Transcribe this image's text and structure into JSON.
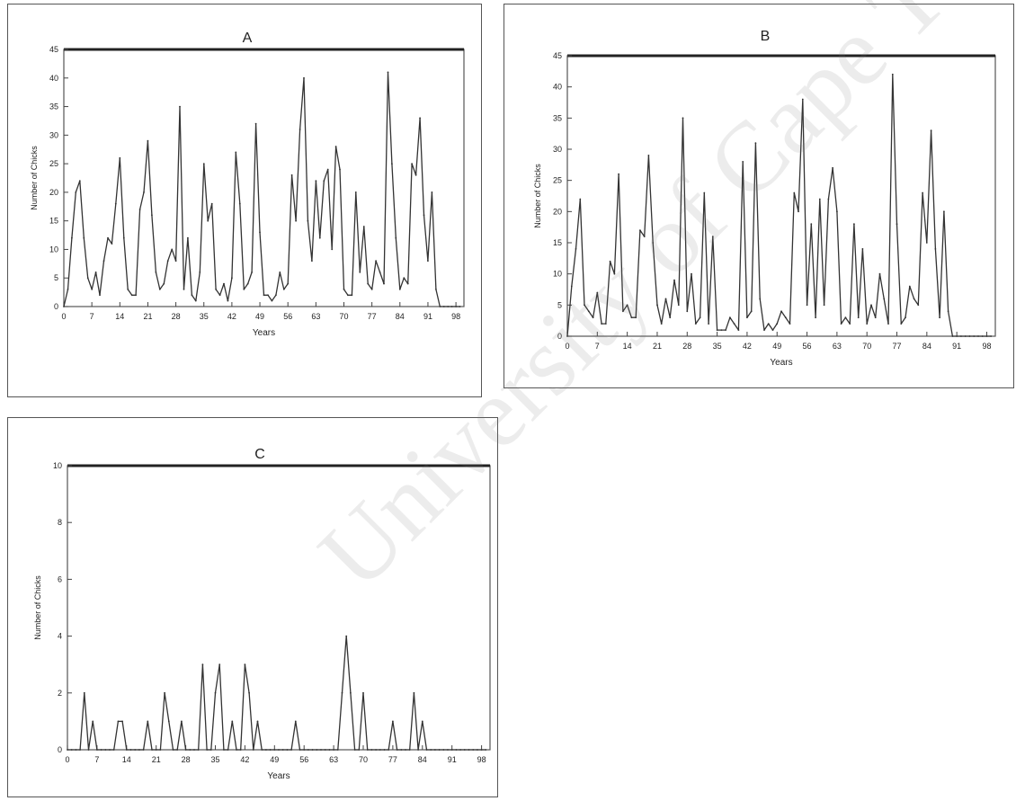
{
  "colors": {
    "line": "#333333",
    "frame": "#555555",
    "text": "#222222"
  },
  "watermark": {
    "text": "University of Cape Town"
  },
  "chart_data": [
    {
      "panel": "A",
      "type": "line",
      "title": "A",
      "xlabel": "Years",
      "ylabel": "Number of Chicks",
      "xlim": [
        0,
        100
      ],
      "ylim": [
        0,
        45
      ],
      "xticks": [
        0,
        7,
        14,
        21,
        28,
        35,
        42,
        49,
        56,
        63,
        70,
        77,
        84,
        91,
        98
      ],
      "xtick_labels": [
        "0",
        "7",
        "14",
        "21",
        "28",
        "35",
        "42",
        "49",
        "56",
        "63",
        "70",
        "77",
        "84",
        "91",
        "98"
      ],
      "yticks": [
        0,
        5,
        10,
        15,
        20,
        25,
        30,
        35,
        40,
        45
      ],
      "ytick_labels": [
        "0",
        "5",
        "10",
        "15",
        "20",
        "25",
        "30",
        "35",
        "40",
        "45"
      ],
      "x": [
        0,
        1,
        2,
        3,
        4,
        5,
        6,
        7,
        8,
        9,
        10,
        11,
        12,
        13,
        14,
        15,
        16,
        17,
        18,
        19,
        20,
        21,
        22,
        23,
        24,
        25,
        26,
        27,
        28,
        29,
        30,
        31,
        32,
        33,
        34,
        35,
        36,
        37,
        38,
        39,
        40,
        41,
        42,
        43,
        44,
        45,
        46,
        47,
        48,
        49,
        50,
        51,
        52,
        53,
        54,
        55,
        56,
        57,
        58,
        59,
        60,
        61,
        62,
        63,
        64,
        65,
        66,
        67,
        68,
        69,
        70,
        71,
        72,
        73,
        74,
        75,
        76,
        77,
        78,
        79,
        80,
        81,
        82,
        83,
        84,
        85,
        86,
        87,
        88,
        89,
        90,
        91,
        92,
        93,
        94,
        95,
        96,
        97,
        98,
        99
      ],
      "y": [
        0,
        3,
        12,
        20,
        22,
        12,
        5,
        3,
        6,
        2,
        8,
        12,
        11,
        18,
        26,
        12,
        3,
        2,
        2,
        17,
        20,
        29,
        16,
        6,
        3,
        4,
        8,
        10,
        8,
        35,
        3,
        12,
        2,
        1,
        6,
        25,
        15,
        18,
        3,
        2,
        4,
        1,
        5,
        27,
        18,
        3,
        4,
        6,
        32,
        13,
        2,
        2,
        1,
        2,
        6,
        3,
        4,
        23,
        15,
        31,
        40,
        15,
        8,
        22,
        12,
        22,
        24,
        10,
        28,
        24,
        3,
        2,
        2,
        20,
        6,
        14,
        4,
        3,
        8,
        6,
        4,
        41,
        25,
        12,
        3,
        5,
        4,
        25,
        23,
        33,
        16,
        8,
        20,
        3,
        0,
        0,
        0,
        0,
        0,
        0
      ]
    },
    {
      "panel": "B",
      "type": "line",
      "title": "B",
      "xlabel": "Years",
      "ylabel": "Number of Chicks",
      "xlim": [
        0,
        100
      ],
      "ylim": [
        0,
        45
      ],
      "xticks": [
        0,
        7,
        14,
        21,
        28,
        35,
        42,
        49,
        56,
        63,
        70,
        77,
        84,
        91,
        98
      ],
      "xtick_labels": [
        "0",
        "7",
        "14",
        "21",
        "28",
        "35",
        "42",
        "49",
        "56",
        "63",
        "70",
        "77",
        "84",
        "91",
        "98"
      ],
      "yticks": [
        0,
        5,
        10,
        15,
        20,
        25,
        30,
        35,
        40,
        45
      ],
      "ytick_labels": [
        "0",
        "5",
        "10",
        "15",
        "20",
        "25",
        "30",
        "35",
        "40",
        "45"
      ],
      "x": [
        0,
        1,
        2,
        3,
        4,
        5,
        6,
        7,
        8,
        9,
        10,
        11,
        12,
        13,
        14,
        15,
        16,
        17,
        18,
        19,
        20,
        21,
        22,
        23,
        24,
        25,
        26,
        27,
        28,
        29,
        30,
        31,
        32,
        33,
        34,
        35,
        36,
        37,
        38,
        39,
        40,
        41,
        42,
        43,
        44,
        45,
        46,
        47,
        48,
        49,
        50,
        51,
        52,
        53,
        54,
        55,
        56,
        57,
        58,
        59,
        60,
        61,
        62,
        63,
        64,
        65,
        66,
        67,
        68,
        69,
        70,
        71,
        72,
        73,
        74,
        75,
        76,
        77,
        78,
        79,
        80,
        81,
        82,
        83,
        84,
        85,
        86,
        87,
        88,
        89,
        90,
        91,
        92,
        93,
        94,
        95,
        96,
        97,
        98,
        99
      ],
      "y": [
        0,
        8,
        14,
        22,
        5,
        4,
        3,
        7,
        2,
        2,
        12,
        10,
        26,
        4,
        5,
        3,
        3,
        17,
        16,
        29,
        15,
        5,
        2,
        6,
        3,
        9,
        5,
        35,
        4,
        10,
        2,
        3,
        23,
        2,
        16,
        1,
        1,
        1,
        3,
        2,
        1,
        28,
        3,
        4,
        31,
        6,
        1,
        2,
        1,
        2,
        4,
        3,
        2,
        23,
        20,
        38,
        5,
        18,
        3,
        22,
        5,
        22,
        27,
        20,
        2,
        3,
        2,
        18,
        3,
        14,
        2,
        5,
        3,
        10,
        6,
        2,
        42,
        18,
        2,
        3,
        8,
        6,
        5,
        23,
        15,
        33,
        14,
        3,
        20,
        4,
        0,
        0,
        0,
        0,
        0,
        0,
        0,
        0,
        0,
        0
      ]
    },
    {
      "panel": "C",
      "type": "line",
      "title": "C",
      "xlabel": "Years",
      "ylabel": "Number of Chicks",
      "xlim": [
        0,
        100
      ],
      "ylim": [
        0,
        10
      ],
      "xticks": [
        0,
        7,
        14,
        21,
        28,
        35,
        42,
        49,
        56,
        63,
        70,
        77,
        84,
        91,
        98
      ],
      "xtick_labels": [
        "0",
        "7",
        "14",
        "21",
        "28",
        "35",
        "42",
        "49",
        "56",
        "63",
        "70",
        "77",
        "84",
        "91",
        "98"
      ],
      "yticks": [
        0,
        2,
        4,
        6,
        8,
        10
      ],
      "ytick_labels": [
        "0",
        "2",
        "4",
        "6",
        "8",
        "10"
      ],
      "x": [
        0,
        1,
        2,
        3,
        4,
        5,
        6,
        7,
        8,
        9,
        10,
        11,
        12,
        13,
        14,
        15,
        16,
        17,
        18,
        19,
        20,
        21,
        22,
        23,
        24,
        25,
        26,
        27,
        28,
        29,
        30,
        31,
        32,
        33,
        34,
        35,
        36,
        37,
        38,
        39,
        40,
        41,
        42,
        43,
        44,
        45,
        46,
        47,
        48,
        49,
        50,
        51,
        52,
        53,
        54,
        55,
        56,
        57,
        58,
        59,
        60,
        61,
        62,
        63,
        64,
        65,
        66,
        67,
        68,
        69,
        70,
        71,
        72,
        73,
        74,
        75,
        76,
        77,
        78,
        79,
        80,
        81,
        82,
        83,
        84,
        85,
        86,
        87,
        88,
        89,
        90,
        91,
        92,
        93,
        94,
        95,
        96,
        97,
        98,
        99
      ],
      "y": [
        0,
        0,
        0,
        0,
        2,
        0,
        1,
        0,
        0,
        0,
        0,
        0,
        1,
        1,
        0,
        0,
        0,
        0,
        0,
        1,
        0,
        0,
        0,
        2,
        1,
        0,
        0,
        1,
        0,
        0,
        0,
        0,
        3,
        0,
        0,
        2,
        3,
        0,
        0,
        1,
        0,
        0,
        3,
        2,
        0,
        1,
        0,
        0,
        0,
        0,
        0,
        0,
        0,
        0,
        1,
        0,
        0,
        0,
        0,
        0,
        0,
        0,
        0,
        0,
        0,
        2,
        4,
        2,
        0,
        0,
        2,
        0,
        0,
        0,
        0,
        0,
        0,
        1,
        0,
        0,
        0,
        0,
        2,
        0,
        1,
        0,
        0,
        0,
        0,
        0,
        0,
        0,
        0,
        0,
        0,
        0,
        0,
        0,
        0,
        0
      ]
    }
  ]
}
